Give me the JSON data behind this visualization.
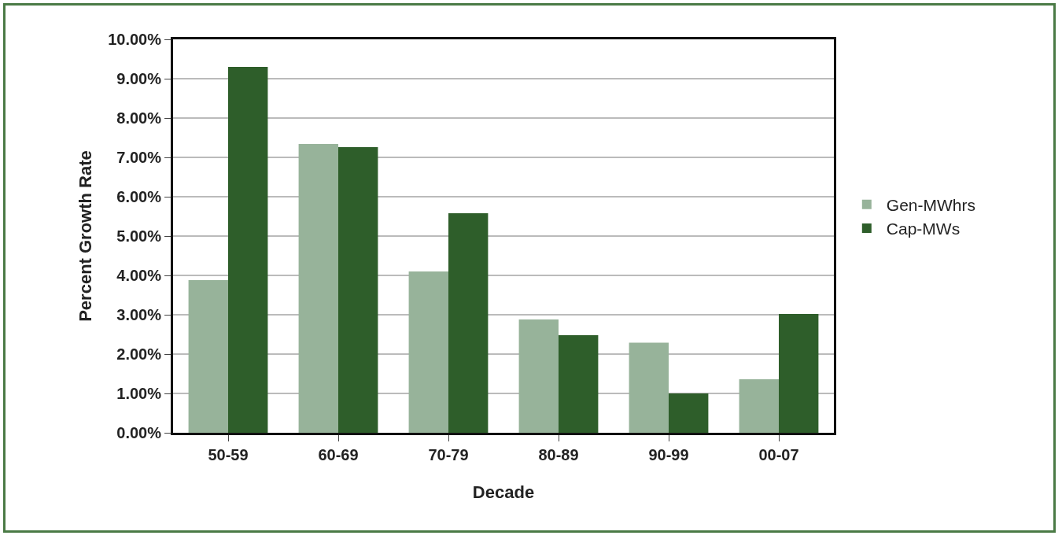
{
  "chart_data": {
    "type": "bar",
    "xlabel": "Decade",
    "ylabel": "Percent Growth Rate",
    "categories": [
      "50-59",
      "60-69",
      "70-79",
      "80-89",
      "90-99",
      "00-07"
    ],
    "series": [
      {
        "name": "Gen-MWhrs",
        "color": "#97b39a",
        "values": [
          3.88,
          7.34,
          4.1,
          2.88,
          2.29,
          1.36
        ]
      },
      {
        "name": "Cap-MWs",
        "color": "#2e5e2a",
        "values": [
          9.3,
          7.26,
          5.58,
          2.48,
          1.0,
          3.02
        ]
      }
    ],
    "ylim": [
      0,
      10
    ],
    "yticks": [
      {
        "value": 0,
        "label": "0.00%"
      },
      {
        "value": 1,
        "label": "1.00%"
      },
      {
        "value": 2,
        "label": "2.00%"
      },
      {
        "value": 3,
        "label": "3.00%"
      },
      {
        "value": 4,
        "label": "4.00%"
      },
      {
        "value": 5,
        "label": "5.00%"
      },
      {
        "value": 6,
        "label": "6.00%"
      },
      {
        "value": 7,
        "label": "7.00%"
      },
      {
        "value": 8,
        "label": "8.00%"
      },
      {
        "value": 9,
        "label": "9.00%"
      },
      {
        "value": 10,
        "label": "10.00%"
      }
    ],
    "grid": "y",
    "legend": "right"
  }
}
